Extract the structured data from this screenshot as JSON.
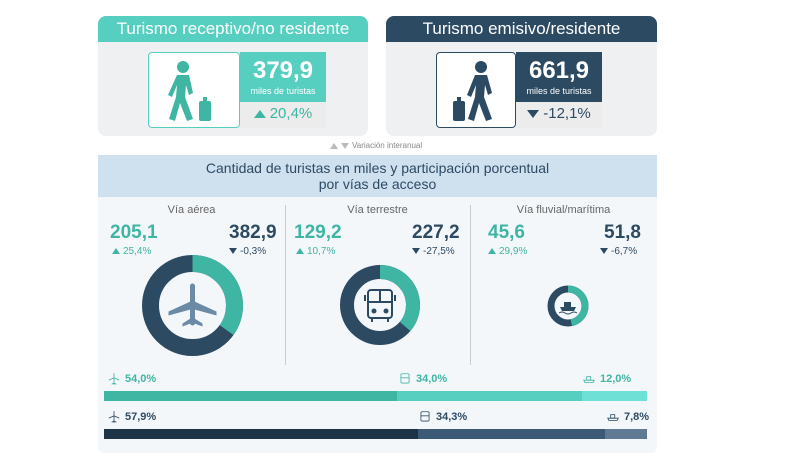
{
  "receptivo": {
    "title": "Turismo receptivo/no residente",
    "value": "379,9",
    "unit": "miles de turistas",
    "change": "20,4%",
    "direction": "up"
  },
  "emisivo": {
    "title": "Turismo emisivo/residente",
    "value": "661,9",
    "unit": "miles de turistas",
    "change": "-12,1%",
    "direction": "down"
  },
  "variation_label": "Variación interanual",
  "section_title_line1": "Cantidad de turistas en miles y participación porcentual",
  "section_title_line2": "por vías de acceso",
  "vias": [
    {
      "name": "Vía aérea",
      "icon": "airplane-icon",
      "receptivo": "205,1",
      "receptivo_pct": "25,4%",
      "emisivo": "382,9",
      "emisivo_pct": "-0,3%",
      "receptivo_share": 0.349
    },
    {
      "name": "Vía terrestre",
      "icon": "bus-icon",
      "receptivo": "129,2",
      "receptivo_pct": "10,7%",
      "emisivo": "227,2",
      "emisivo_pct": "-27,5%",
      "receptivo_share": 0.362
    },
    {
      "name": "Vía fluvial/marítima",
      "icon": "ship-icon",
      "receptivo": "45,6",
      "receptivo_pct": "29,9%",
      "emisivo": "51,8",
      "emisivo_pct": "-6,7%",
      "receptivo_share": 0.468
    }
  ],
  "share_receptivo": [
    {
      "icon": "airplane-icon",
      "label": "54,0%",
      "value": 54.0
    },
    {
      "icon": "bus-icon",
      "label": "34,0%",
      "value": 34.0
    },
    {
      "icon": "ship-icon",
      "label": "12,0%",
      "value": 12.0
    }
  ],
  "share_emisivo": [
    {
      "icon": "airplane-icon",
      "label": "57,9%",
      "value": 57.9
    },
    {
      "icon": "bus-icon",
      "label": "34,3%",
      "value": 34.3
    },
    {
      "icon": "ship-icon",
      "label": "7,8%",
      "value": 7.8
    }
  ],
  "colors": {
    "teal": "#3fb5a3",
    "teal_light": "#57cfc0",
    "teal_lighter": "#6fe0d6",
    "navy": "#2d4a63",
    "navy_dark": "#1f3347",
    "navy_mid": "#3c5a76",
    "navy_light": "#5f7a92",
    "banner": "#cfe0ef"
  }
}
